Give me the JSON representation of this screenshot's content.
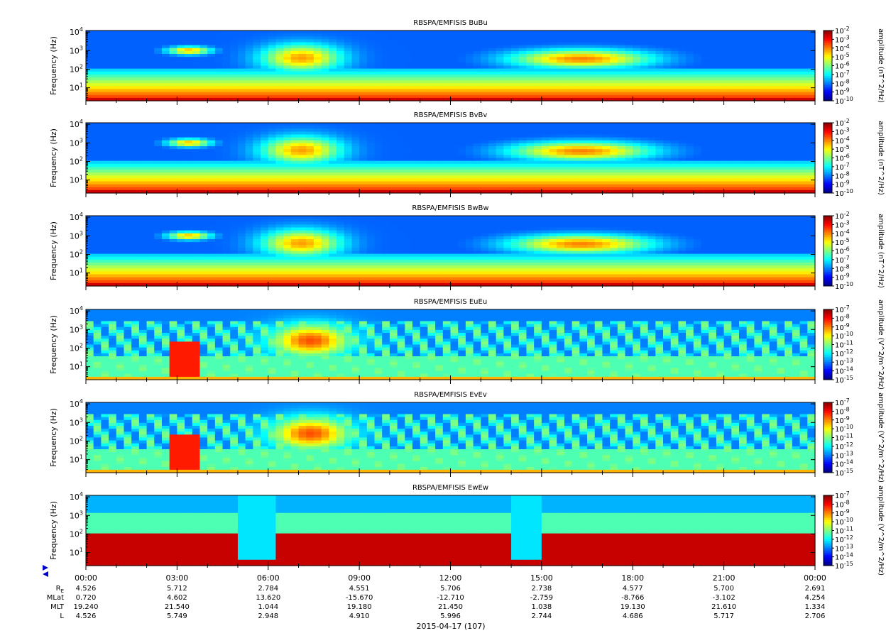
{
  "chart_data": [
    {
      "type": "heatmap",
      "title": "RBSPA/EMFISIS  BuBu",
      "ylabel": "Frequency (Hz)",
      "yscale": "log",
      "ylim": [
        2,
        10000
      ],
      "yticks": [
        "10^1",
        "10^2",
        "10^3",
        "10^4"
      ],
      "colorbar_label": "amplitude (nT^2/Hz)",
      "colorbar_ticks": [
        "10^-2",
        "10^-3",
        "10^-4",
        "10^-5",
        "10^-6",
        "10^-7",
        "10^-8",
        "10^-9",
        "10^-10"
      ],
      "clim_exp": [
        -10,
        -2
      ],
      "kind": "B"
    },
    {
      "type": "heatmap",
      "title": "RBSPA/EMFISIS  BvBv",
      "ylabel": "Frequency (Hz)",
      "yscale": "log",
      "ylim": [
        2,
        10000
      ],
      "yticks": [
        "10^1",
        "10^2",
        "10^3",
        "10^4"
      ],
      "colorbar_label": "amplitude (nT^2/Hz)",
      "colorbar_ticks": [
        "10^-2",
        "10^-3",
        "10^-4",
        "10^-5",
        "10^-6",
        "10^-7",
        "10^-8",
        "10^-9",
        "10^-10"
      ],
      "clim_exp": [
        -10,
        -2
      ],
      "kind": "B"
    },
    {
      "type": "heatmap",
      "title": "RBSPA/EMFISIS  BwBw",
      "ylabel": "Frequency (Hz)",
      "yscale": "log",
      "ylim": [
        2,
        10000
      ],
      "yticks": [
        "10^1",
        "10^2",
        "10^3",
        "10^4"
      ],
      "colorbar_label": "amplitude (nT^2/Hz)",
      "colorbar_ticks": [
        "10^-2",
        "10^-3",
        "10^-4",
        "10^-5",
        "10^-6",
        "10^-7",
        "10^-8",
        "10^-9",
        "10^-10"
      ],
      "clim_exp": [
        -10,
        -2
      ],
      "kind": "B"
    },
    {
      "type": "heatmap",
      "title": "RBSPA/EMFISIS  EuEu",
      "ylabel": "Frequency (Hz)",
      "yscale": "log",
      "ylim": [
        2,
        10000
      ],
      "yticks": [
        "10^1",
        "10^2",
        "10^3",
        "10^4"
      ],
      "colorbar_label": "amplitude (V^2/m^2/Hz)",
      "colorbar_ticks": [
        "10^-7",
        "10^-8",
        "10^-9",
        "10^-10",
        "10^-11",
        "10^-12",
        "10^-13",
        "10^-14",
        "10^-15"
      ],
      "clim_exp": [
        -15,
        -7
      ],
      "kind": "E"
    },
    {
      "type": "heatmap",
      "title": "RBSPA/EMFISIS  EvEv",
      "ylabel": "Frequency (Hz)",
      "yscale": "log",
      "ylim": [
        2,
        10000
      ],
      "yticks": [
        "10^1",
        "10^2",
        "10^3",
        "10^4"
      ],
      "colorbar_label": "amplitude (V^2/m^2/Hz)",
      "colorbar_ticks": [
        "10^-7",
        "10^-8",
        "10^-9",
        "10^-10",
        "10^-11",
        "10^-12",
        "10^-13",
        "10^-14",
        "10^-15"
      ],
      "clim_exp": [
        -15,
        -7
      ],
      "kind": "E"
    },
    {
      "type": "heatmap",
      "title": "RBSPA/EMFISIS  EwEw",
      "ylabel": "Frequency (Hz)",
      "yscale": "log",
      "ylim": [
        2,
        10000
      ],
      "yticks": [
        "10^1",
        "10^2",
        "10^3",
        "10^4"
      ],
      "colorbar_label": "amplitude (V^2/m^2/Hz)",
      "colorbar_ticks": [
        "10^-7",
        "10^-8",
        "10^-9",
        "10^-10",
        "10^-11",
        "10^-12",
        "10^-13",
        "10^-14",
        "10^-15"
      ],
      "clim_exp": [
        -15,
        -7
      ],
      "kind": "Ew"
    }
  ],
  "x_axis": {
    "ticks": [
      "00:00",
      "03:00",
      "06:00",
      "09:00",
      "12:00",
      "15:00",
      "18:00",
      "21:00",
      "00:00"
    ],
    "date_label": "2015-04-17 (107)"
  },
  "ephemeris": [
    {
      "label": "RE",
      "values": [
        "4.526",
        "5.712",
        "2.784",
        "4.551",
        "5.706",
        "2.738",
        "4.577",
        "5.700",
        "2.691"
      ]
    },
    {
      "label": "MLat",
      "values": [
        "0.720",
        "4.602",
        "13.620",
        "-15.670",
        "-12.710",
        "-2.759",
        "-8.766",
        "-3.102",
        "4.254"
      ]
    },
    {
      "label": "MLT",
      "values": [
        "19.240",
        "21.540",
        "1.044",
        "19.180",
        "21.450",
        "1.038",
        "19.130",
        "21.610",
        "1.334"
      ]
    },
    {
      "label": "L",
      "values": [
        "4.526",
        "5.749",
        "2.948",
        "4.910",
        "5.996",
        "2.744",
        "4.686",
        "5.717",
        "2.706"
      ]
    }
  ],
  "colors": {
    "jet": [
      "#000080",
      "#0000ff",
      "#0080ff",
      "#00ffff",
      "#80ff80",
      "#ffff00",
      "#ff8000",
      "#ff0000",
      "#800000"
    ]
  }
}
